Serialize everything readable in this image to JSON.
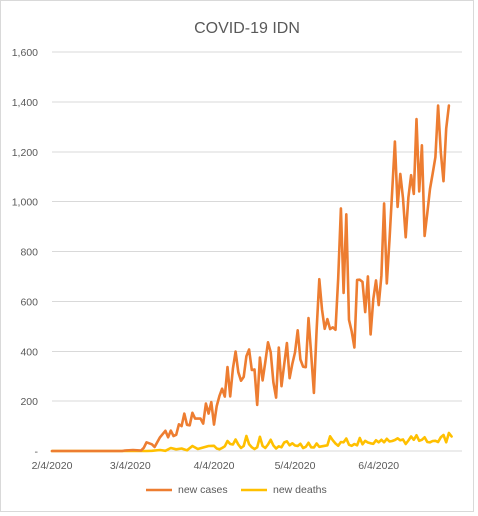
{
  "chart_data": {
    "type": "line",
    "title": "COVID-19 IDN",
    "xlabel": "",
    "ylabel": "",
    "ylim": [
      0,
      1600
    ],
    "yticks": [
      0,
      200,
      400,
      600,
      800,
      1000,
      1200,
      1400,
      1600
    ],
    "ytick_labels": [
      "-",
      "200",
      "400",
      "600",
      "800",
      "1,000",
      "1,200",
      "1,400",
      "1,600"
    ],
    "xticks": [
      "2020-02-04",
      "2020-03-04",
      "2020-04-04",
      "2020-05-04",
      "2020-06-04"
    ],
    "xtick_labels": [
      "2/4/2020",
      "3/4/2020",
      "4/4/2020",
      "5/4/2020",
      "6/4/2020"
    ],
    "x_start": "2020-02-04",
    "x_end": "2020-06-30",
    "grid": true,
    "legend_position": "bottom",
    "series": [
      {
        "name": "new cases",
        "color": "#ED7D31",
        "points": [
          [
            "2020-02-04",
            0
          ],
          [
            "2020-03-01",
            0
          ],
          [
            "2020-03-02",
            2
          ],
          [
            "2020-03-05",
            4
          ],
          [
            "2020-03-08",
            2
          ],
          [
            "2020-03-09",
            13
          ],
          [
            "2020-03-10",
            35
          ],
          [
            "2020-03-12",
            27
          ],
          [
            "2020-03-13",
            16
          ],
          [
            "2020-03-15",
            55
          ],
          [
            "2020-03-17",
            81
          ],
          [
            "2020-03-18",
            55
          ],
          [
            "2020-03-19",
            82
          ],
          [
            "2020-03-20",
            60
          ],
          [
            "2020-03-21",
            65
          ],
          [
            "2020-03-22",
            107
          ],
          [
            "2020-03-23",
            100
          ],
          [
            "2020-03-24",
            150
          ],
          [
            "2020-03-25",
            105
          ],
          [
            "2020-03-26",
            103
          ],
          [
            "2020-03-27",
            153
          ],
          [
            "2020-03-28",
            130
          ],
          [
            "2020-03-29",
            130
          ],
          [
            "2020-03-30",
            130
          ],
          [
            "2020-03-31",
            110
          ],
          [
            "2020-04-01",
            190
          ],
          [
            "2020-04-02",
            150
          ],
          [
            "2020-04-03",
            196
          ],
          [
            "2020-04-04",
            106
          ],
          [
            "2020-04-05",
            180
          ],
          [
            "2020-04-06",
            220
          ],
          [
            "2020-04-07",
            250
          ],
          [
            "2020-04-08",
            218
          ],
          [
            "2020-04-09",
            337
          ],
          [
            "2020-04-10",
            219
          ],
          [
            "2020-04-11",
            330
          ],
          [
            "2020-04-12",
            399
          ],
          [
            "2020-04-13",
            316
          ],
          [
            "2020-04-14",
            282
          ],
          [
            "2020-04-15",
            297
          ],
          [
            "2020-04-16",
            380
          ],
          [
            "2020-04-17",
            407
          ],
          [
            "2020-04-18",
            325
          ],
          [
            "2020-04-19",
            327
          ],
          [
            "2020-04-20",
            185
          ],
          [
            "2020-04-21",
            375
          ],
          [
            "2020-04-22",
            283
          ],
          [
            "2020-04-23",
            357
          ],
          [
            "2020-04-24",
            436
          ],
          [
            "2020-04-25",
            396
          ],
          [
            "2020-04-26",
            275
          ],
          [
            "2020-04-27",
            214
          ],
          [
            "2020-04-28",
            415
          ],
          [
            "2020-04-29",
            260
          ],
          [
            "2020-04-30",
            347
          ],
          [
            "2020-05-01",
            433
          ],
          [
            "2020-05-02",
            292
          ],
          [
            "2020-05-03",
            349
          ],
          [
            "2020-05-04",
            395
          ],
          [
            "2020-05-05",
            484
          ],
          [
            "2020-05-06",
            367
          ],
          [
            "2020-05-07",
            338
          ],
          [
            "2020-05-08",
            336
          ],
          [
            "2020-05-09",
            533
          ],
          [
            "2020-05-10",
            387
          ],
          [
            "2020-05-11",
            233
          ],
          [
            "2020-05-12",
            484
          ],
          [
            "2020-05-13",
            689
          ],
          [
            "2020-05-14",
            568
          ],
          [
            "2020-05-15",
            490
          ],
          [
            "2020-05-16",
            529
          ],
          [
            "2020-05-17",
            489
          ],
          [
            "2020-05-18",
            496
          ],
          [
            "2020-05-19",
            486
          ],
          [
            "2020-05-20",
            693
          ],
          [
            "2020-05-21",
            973
          ],
          [
            "2020-05-22",
            634
          ],
          [
            "2020-05-23",
            949
          ],
          [
            "2020-05-24",
            526
          ],
          [
            "2020-05-25",
            479
          ],
          [
            "2020-05-26",
            415
          ],
          [
            "2020-05-27",
            686
          ],
          [
            "2020-05-28",
            687
          ],
          [
            "2020-05-29",
            678
          ],
          [
            "2020-05-30",
            557
          ],
          [
            "2020-05-31",
            700
          ],
          [
            "2020-06-01",
            467
          ],
          [
            "2020-06-02",
            609
          ],
          [
            "2020-06-03",
            684
          ],
          [
            "2020-06-04",
            585
          ],
          [
            "2020-06-05",
            703
          ],
          [
            "2020-06-06",
            993
          ],
          [
            "2020-06-07",
            672
          ],
          [
            "2020-06-08",
            847
          ],
          [
            "2020-06-09",
            1043
          ],
          [
            "2020-06-10",
            1241
          ],
          [
            "2020-06-11",
            979
          ],
          [
            "2020-06-12",
            1111
          ],
          [
            "2020-06-13",
            1014
          ],
          [
            "2020-06-14",
            857
          ],
          [
            "2020-06-15",
            1017
          ],
          [
            "2020-06-16",
            1106
          ],
          [
            "2020-06-17",
            1031
          ],
          [
            "2020-06-18",
            1331
          ],
          [
            "2020-06-19",
            1041
          ],
          [
            "2020-06-20",
            1226
          ],
          [
            "2020-06-21",
            862
          ],
          [
            "2020-06-22",
            954
          ],
          [
            "2020-06-23",
            1051
          ],
          [
            "2020-06-24",
            1113
          ],
          [
            "2020-06-25",
            1178
          ],
          [
            "2020-06-26",
            1385
          ],
          [
            "2020-06-27",
            1198
          ],
          [
            "2020-06-28",
            1082
          ],
          [
            "2020-06-29",
            1293
          ],
          [
            "2020-06-30",
            1385
          ]
        ]
      },
      {
        "name": "new deaths",
        "color": "#FFC000",
        "points": [
          [
            "2020-02-04",
            0
          ],
          [
            "2020-03-10",
            0
          ],
          [
            "2020-03-12",
            1
          ],
          [
            "2020-03-15",
            4
          ],
          [
            "2020-03-17",
            1
          ],
          [
            "2020-03-19",
            12
          ],
          [
            "2020-03-21",
            7
          ],
          [
            "2020-03-23",
            10
          ],
          [
            "2020-03-25",
            3
          ],
          [
            "2020-03-27",
            20
          ],
          [
            "2020-03-29",
            8
          ],
          [
            "2020-03-31",
            14
          ],
          [
            "2020-04-02",
            20
          ],
          [
            "2020-04-04",
            21
          ],
          [
            "2020-04-05",
            10
          ],
          [
            "2020-04-06",
            7
          ],
          [
            "2020-04-07",
            12
          ],
          [
            "2020-04-08",
            19
          ],
          [
            "2020-04-09",
            40
          ],
          [
            "2020-04-10",
            28
          ],
          [
            "2020-04-11",
            26
          ],
          [
            "2020-04-12",
            46
          ],
          [
            "2020-04-13",
            26
          ],
          [
            "2020-04-14",
            12
          ],
          [
            "2020-04-15",
            20
          ],
          [
            "2020-04-16",
            60
          ],
          [
            "2020-04-17",
            27
          ],
          [
            "2020-04-18",
            15
          ],
          [
            "2020-04-19",
            8
          ],
          [
            "2020-04-20",
            15
          ],
          [
            "2020-04-21",
            57
          ],
          [
            "2020-04-22",
            20
          ],
          [
            "2020-04-23",
            12
          ],
          [
            "2020-04-24",
            26
          ],
          [
            "2020-04-25",
            45
          ],
          [
            "2020-04-26",
            22
          ],
          [
            "2020-04-27",
            10
          ],
          [
            "2020-04-28",
            19
          ],
          [
            "2020-04-29",
            15
          ],
          [
            "2020-04-30",
            34
          ],
          [
            "2020-05-01",
            39
          ],
          [
            "2020-05-02",
            23
          ],
          [
            "2020-05-03",
            31
          ],
          [
            "2020-05-04",
            22
          ],
          [
            "2020-05-05",
            20
          ],
          [
            "2020-05-06",
            29
          ],
          [
            "2020-05-07",
            12
          ],
          [
            "2020-05-08",
            17
          ],
          [
            "2020-05-09",
            33
          ],
          [
            "2020-05-10",
            15
          ],
          [
            "2020-05-11",
            14
          ],
          [
            "2020-05-12",
            30
          ],
          [
            "2020-05-13",
            17
          ],
          [
            "2020-05-14",
            19
          ],
          [
            "2020-05-15",
            21
          ],
          [
            "2020-05-16",
            23
          ],
          [
            "2020-05-17",
            59
          ],
          [
            "2020-05-18",
            43
          ],
          [
            "2020-05-19",
            30
          ],
          [
            "2020-05-20",
            21
          ],
          [
            "2020-05-21",
            36
          ],
          [
            "2020-05-22",
            35
          ],
          [
            "2020-05-23",
            50
          ],
          [
            "2020-05-24",
            25
          ],
          [
            "2020-05-25",
            21
          ],
          [
            "2020-05-26",
            28
          ],
          [
            "2020-05-27",
            23
          ],
          [
            "2020-05-28",
            52
          ],
          [
            "2020-05-29",
            27
          ],
          [
            "2020-05-30",
            41
          ],
          [
            "2020-05-31",
            34
          ],
          [
            "2020-06-01",
            31
          ],
          [
            "2020-06-02",
            29
          ],
          [
            "2020-06-03",
            43
          ],
          [
            "2020-06-04",
            35
          ],
          [
            "2020-06-05",
            45
          ],
          [
            "2020-06-06",
            35
          ],
          [
            "2020-06-07",
            49
          ],
          [
            "2020-06-08",
            38
          ],
          [
            "2020-06-09",
            40
          ],
          [
            "2020-06-10",
            44
          ],
          [
            "2020-06-11",
            51
          ],
          [
            "2020-06-12",
            43
          ],
          [
            "2020-06-13",
            46
          ],
          [
            "2020-06-14",
            28
          ],
          [
            "2020-06-15",
            42
          ],
          [
            "2020-06-16",
            58
          ],
          [
            "2020-06-17",
            45
          ],
          [
            "2020-06-18",
            63
          ],
          [
            "2020-06-19",
            41
          ],
          [
            "2020-06-20",
            45
          ],
          [
            "2020-06-21",
            55
          ],
          [
            "2020-06-22",
            36
          ],
          [
            "2020-06-23",
            35
          ],
          [
            "2020-06-24",
            40
          ],
          [
            "2020-06-25",
            41
          ],
          [
            "2020-06-26",
            36
          ],
          [
            "2020-06-27",
            55
          ],
          [
            "2020-06-28",
            64
          ],
          [
            "2020-06-29",
            35
          ],
          [
            "2020-06-30",
            72
          ],
          [
            "2020-07-01",
            58
          ]
        ]
      }
    ]
  }
}
